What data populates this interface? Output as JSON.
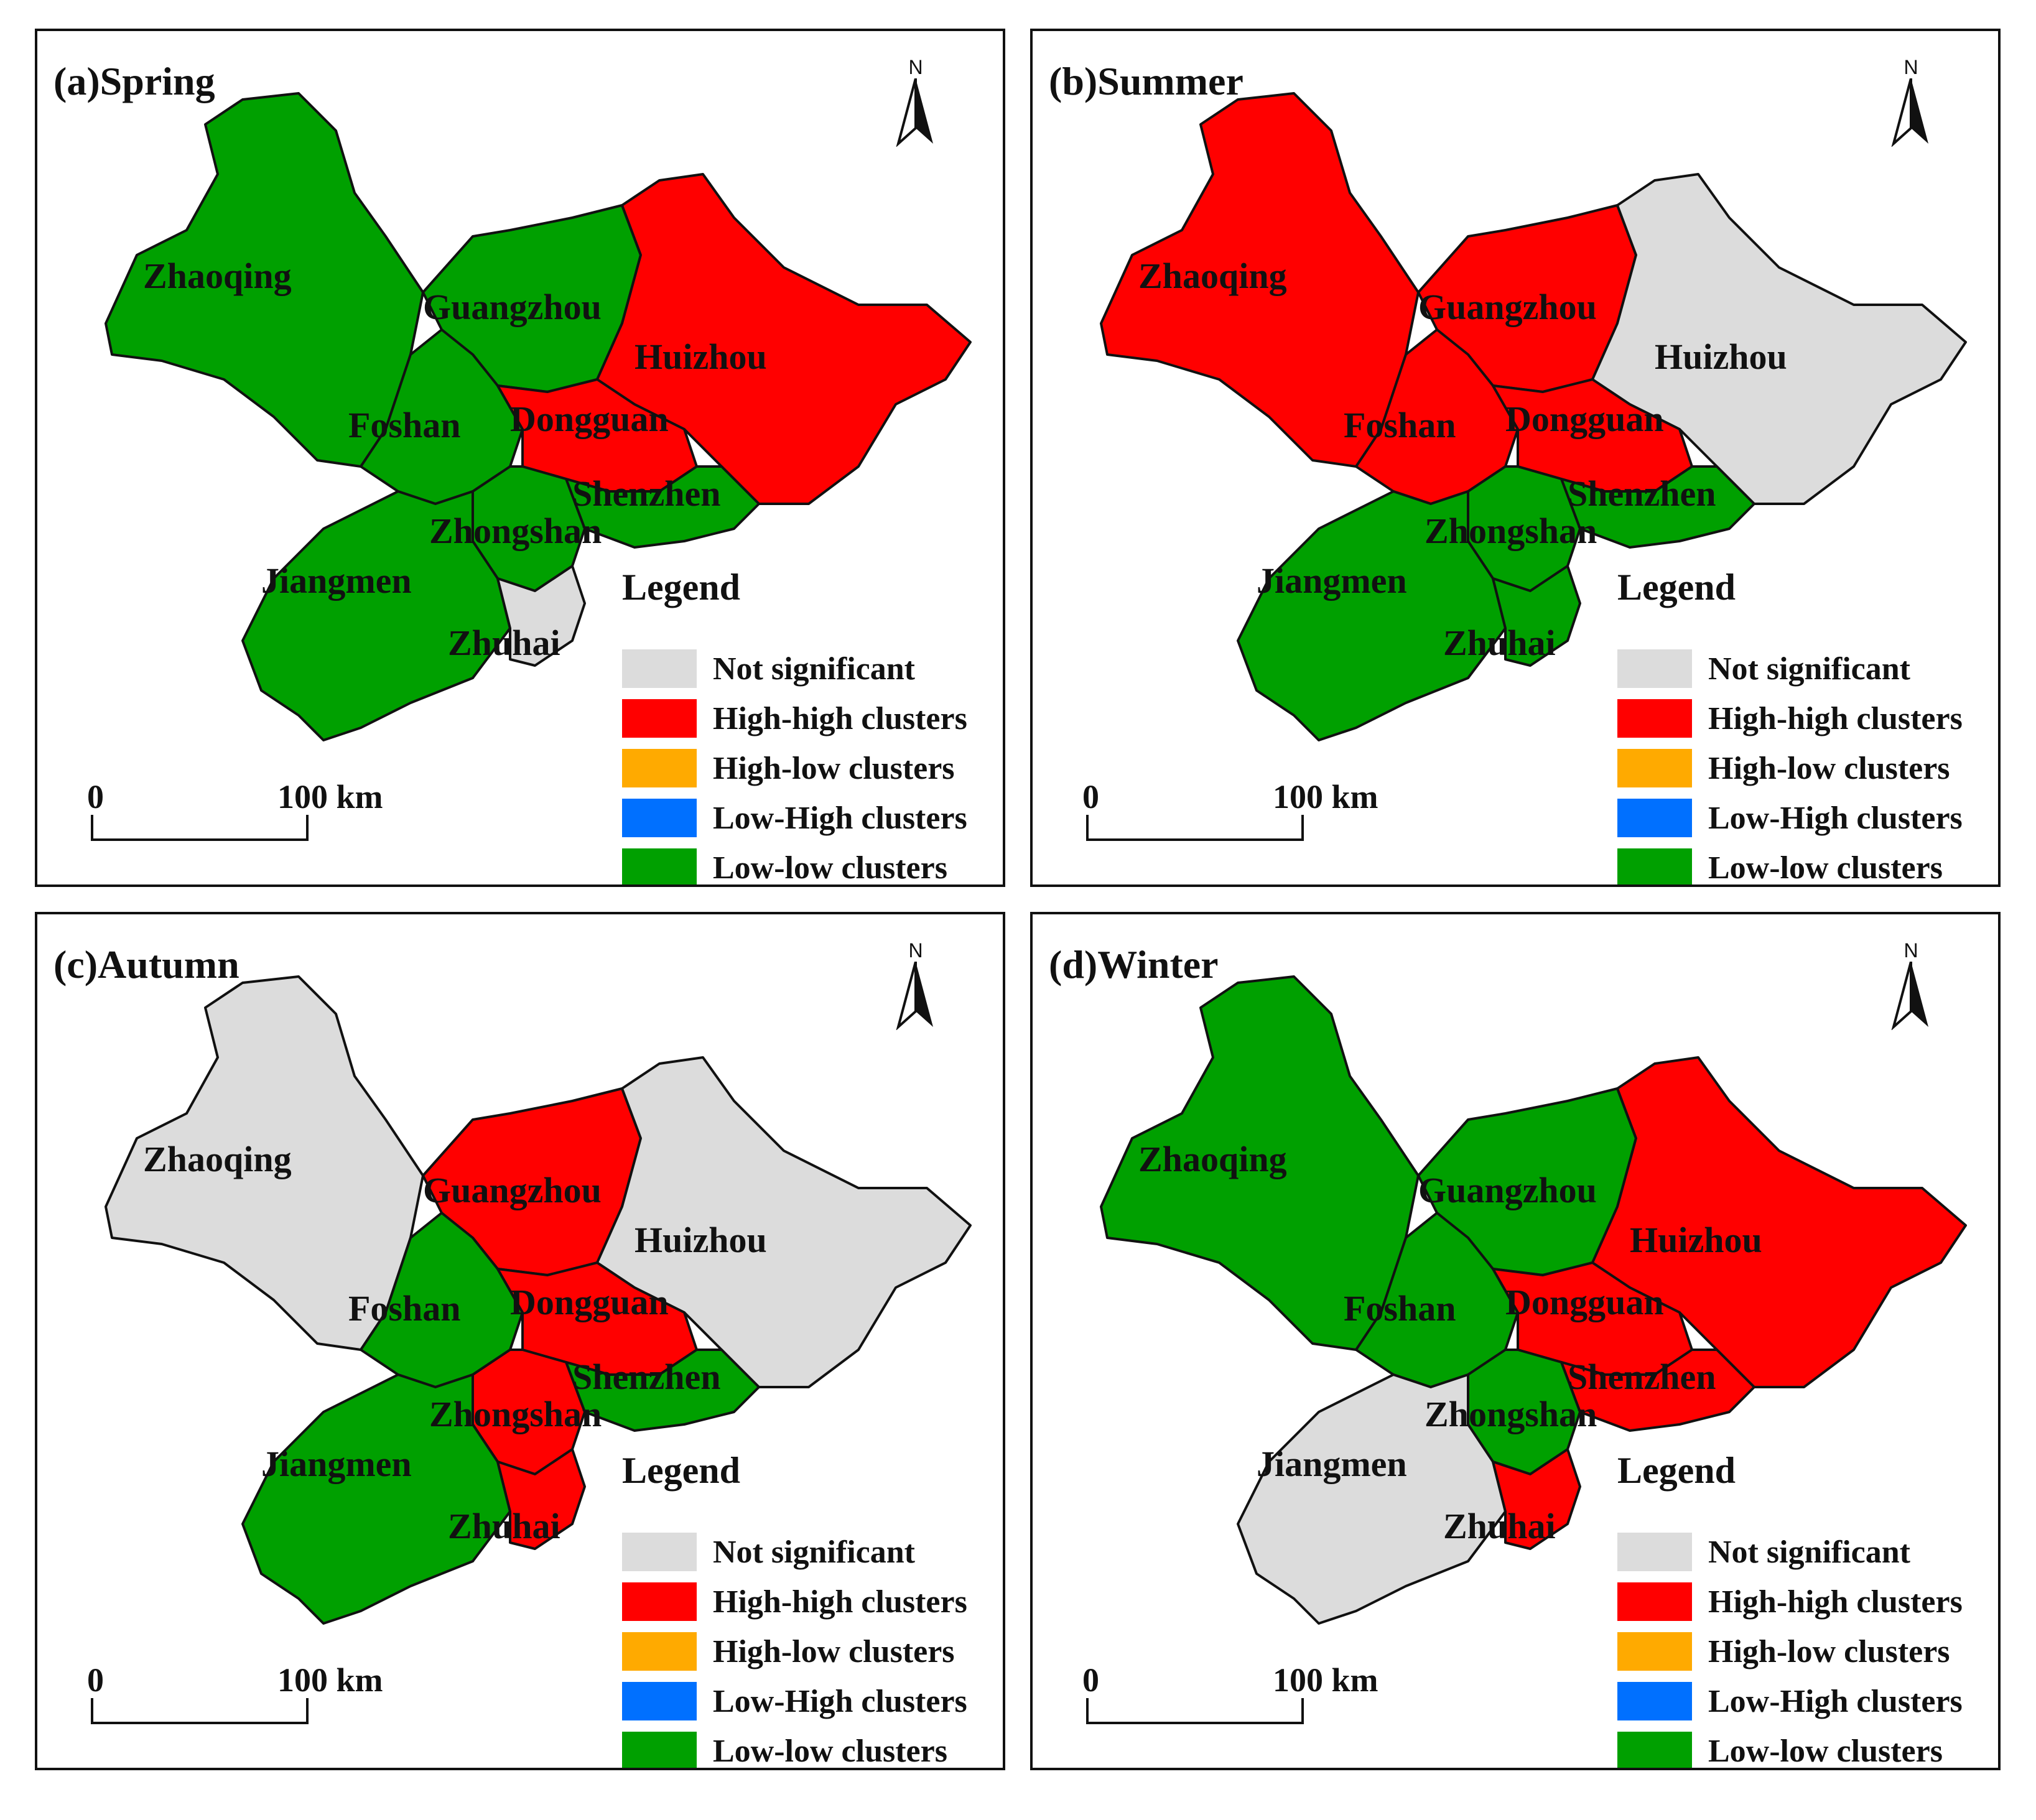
{
  "colors": {
    "not_significant": "#dcdcdc",
    "high_high": "#ff0000",
    "high_low": "#ffaa00",
    "low_high": "#0070ff",
    "low_low": "#00a000",
    "boundary": "#111111"
  },
  "panels": [
    {
      "title": "(a)Spring",
      "north": "N",
      "legend_title": "Legend",
      "scale_zero": "0",
      "scale_dist": "100 km",
      "cities": {
        "zhaoqing": "Zhaoqing",
        "guangzhou": "Guangzhou",
        "huizhou": "Huizhou",
        "foshan": "Foshan",
        "dongguan": "Dongguan",
        "shenzhen": "Shenzhen",
        "zhongshan": "Zhongshan",
        "jiangmen": "Jiangmen",
        "zhuhai": "Zhuhai"
      },
      "classes": {
        "zhaoqing": "low_low",
        "guangzhou": "low_low",
        "huizhou": "high_high",
        "foshan": "low_low",
        "dongguan": "high_high",
        "shenzhen": "low_low",
        "zhongshan": "low_low",
        "jiangmen": "low_low",
        "zhuhai": "not_significant"
      }
    },
    {
      "title": "(b)Summer",
      "north": "N",
      "legend_title": "Legend",
      "scale_zero": "0",
      "scale_dist": "100 km",
      "cities": {
        "zhaoqing": "Zhaoqing",
        "guangzhou": "Guangzhou",
        "huizhou": "Huizhou",
        "foshan": "Foshan",
        "dongguan": "Dongguan",
        "shenzhen": "Shenzhen",
        "zhongshan": "Zhongshan",
        "jiangmen": "Jiangmen",
        "zhuhai": "Zhuhai"
      },
      "classes": {
        "zhaoqing": "high_high",
        "guangzhou": "high_high",
        "huizhou": "not_significant",
        "foshan": "high_high",
        "dongguan": "high_high",
        "shenzhen": "low_low",
        "zhongshan": "low_low",
        "jiangmen": "low_low",
        "zhuhai": "low_low"
      }
    },
    {
      "title": "(c)Autumn",
      "north": "N",
      "legend_title": "Legend",
      "scale_zero": "0",
      "scale_dist": "100 km",
      "cities": {
        "zhaoqing": "Zhaoqing",
        "guangzhou": "Guangzhou",
        "huizhou": "Huizhou",
        "foshan": "Foshan",
        "dongguan": "Dongguan",
        "shenzhen": "Shenzhen",
        "zhongshan": "Zhongshan",
        "jiangmen": "Jiangmen",
        "zhuhai": "Zhuhai"
      },
      "classes": {
        "zhaoqing": "not_significant",
        "guangzhou": "high_high",
        "huizhou": "not_significant",
        "foshan": "low_low",
        "dongguan": "high_high",
        "shenzhen": "low_low",
        "zhongshan": "high_high",
        "jiangmen": "low_low",
        "zhuhai": "high_high"
      }
    },
    {
      "title": "(d)Winter",
      "north": "N",
      "legend_title": "Legend",
      "scale_zero": "0",
      "scale_dist": "100 km",
      "cities": {
        "zhaoqing": "Zhaoqing",
        "guangzhou": "Guangzhou",
        "huizhou": "Huizhou",
        "foshan": "Foshan",
        "dongguan": "Dongguan",
        "shenzhen": "Shenzhen",
        "zhongshan": "Zhongshan",
        "jiangmen": "Jiangmen",
        "zhuhai": "Zhuhai"
      },
      "classes": {
        "zhaoqing": "low_low",
        "guangzhou": "low_low",
        "huizhou": "high_high",
        "foshan": "low_low",
        "dongguan": "high_high",
        "shenzhen": "high_high",
        "zhongshan": "low_low",
        "jiangmen": "not_significant",
        "zhuhai": "high_high"
      }
    }
  ],
  "legend": [
    {
      "label": "Not significant",
      "class": "not_significant"
    },
    {
      "label": "High-high clusters",
      "class": "high_high"
    },
    {
      "label": "High-low clusters",
      "class": "high_low"
    },
    {
      "label": "Low-High clusters",
      "class": "low_high"
    },
    {
      "label": "Low-low clusters",
      "class": "low_low"
    }
  ]
}
